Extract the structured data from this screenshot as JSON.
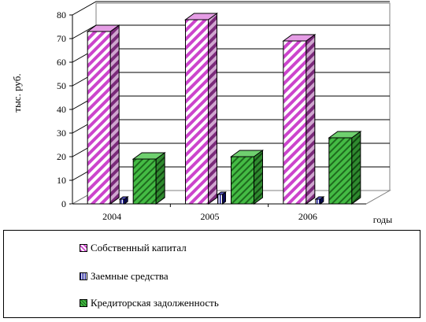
{
  "chart_data": {
    "type": "bar",
    "title": "",
    "ylabel": "тыс. руб.",
    "xlabel": "годы",
    "ylim": [
      0,
      80
    ],
    "yticks": [
      0,
      10,
      20,
      30,
      40,
      50,
      60,
      70,
      80
    ],
    "grid": true,
    "three_d": true,
    "legend_position": "bottom",
    "categories": [
      "2004",
      "2005",
      "2006"
    ],
    "series": [
      {
        "name": "Собственный капитал",
        "values": [
          73,
          78,
          69
        ],
        "color": "#cc44cc",
        "pattern": "diagonal-stripes"
      },
      {
        "name": "Заемные средства",
        "values": [
          2,
          4,
          2
        ],
        "color": "#1a1a99",
        "pattern": "vertical-stripes"
      },
      {
        "name": "Кредиторская задолженность",
        "values": [
          19,
          20,
          28
        ],
        "color": "#33aa33",
        "pattern": "crosshatch"
      }
    ]
  }
}
